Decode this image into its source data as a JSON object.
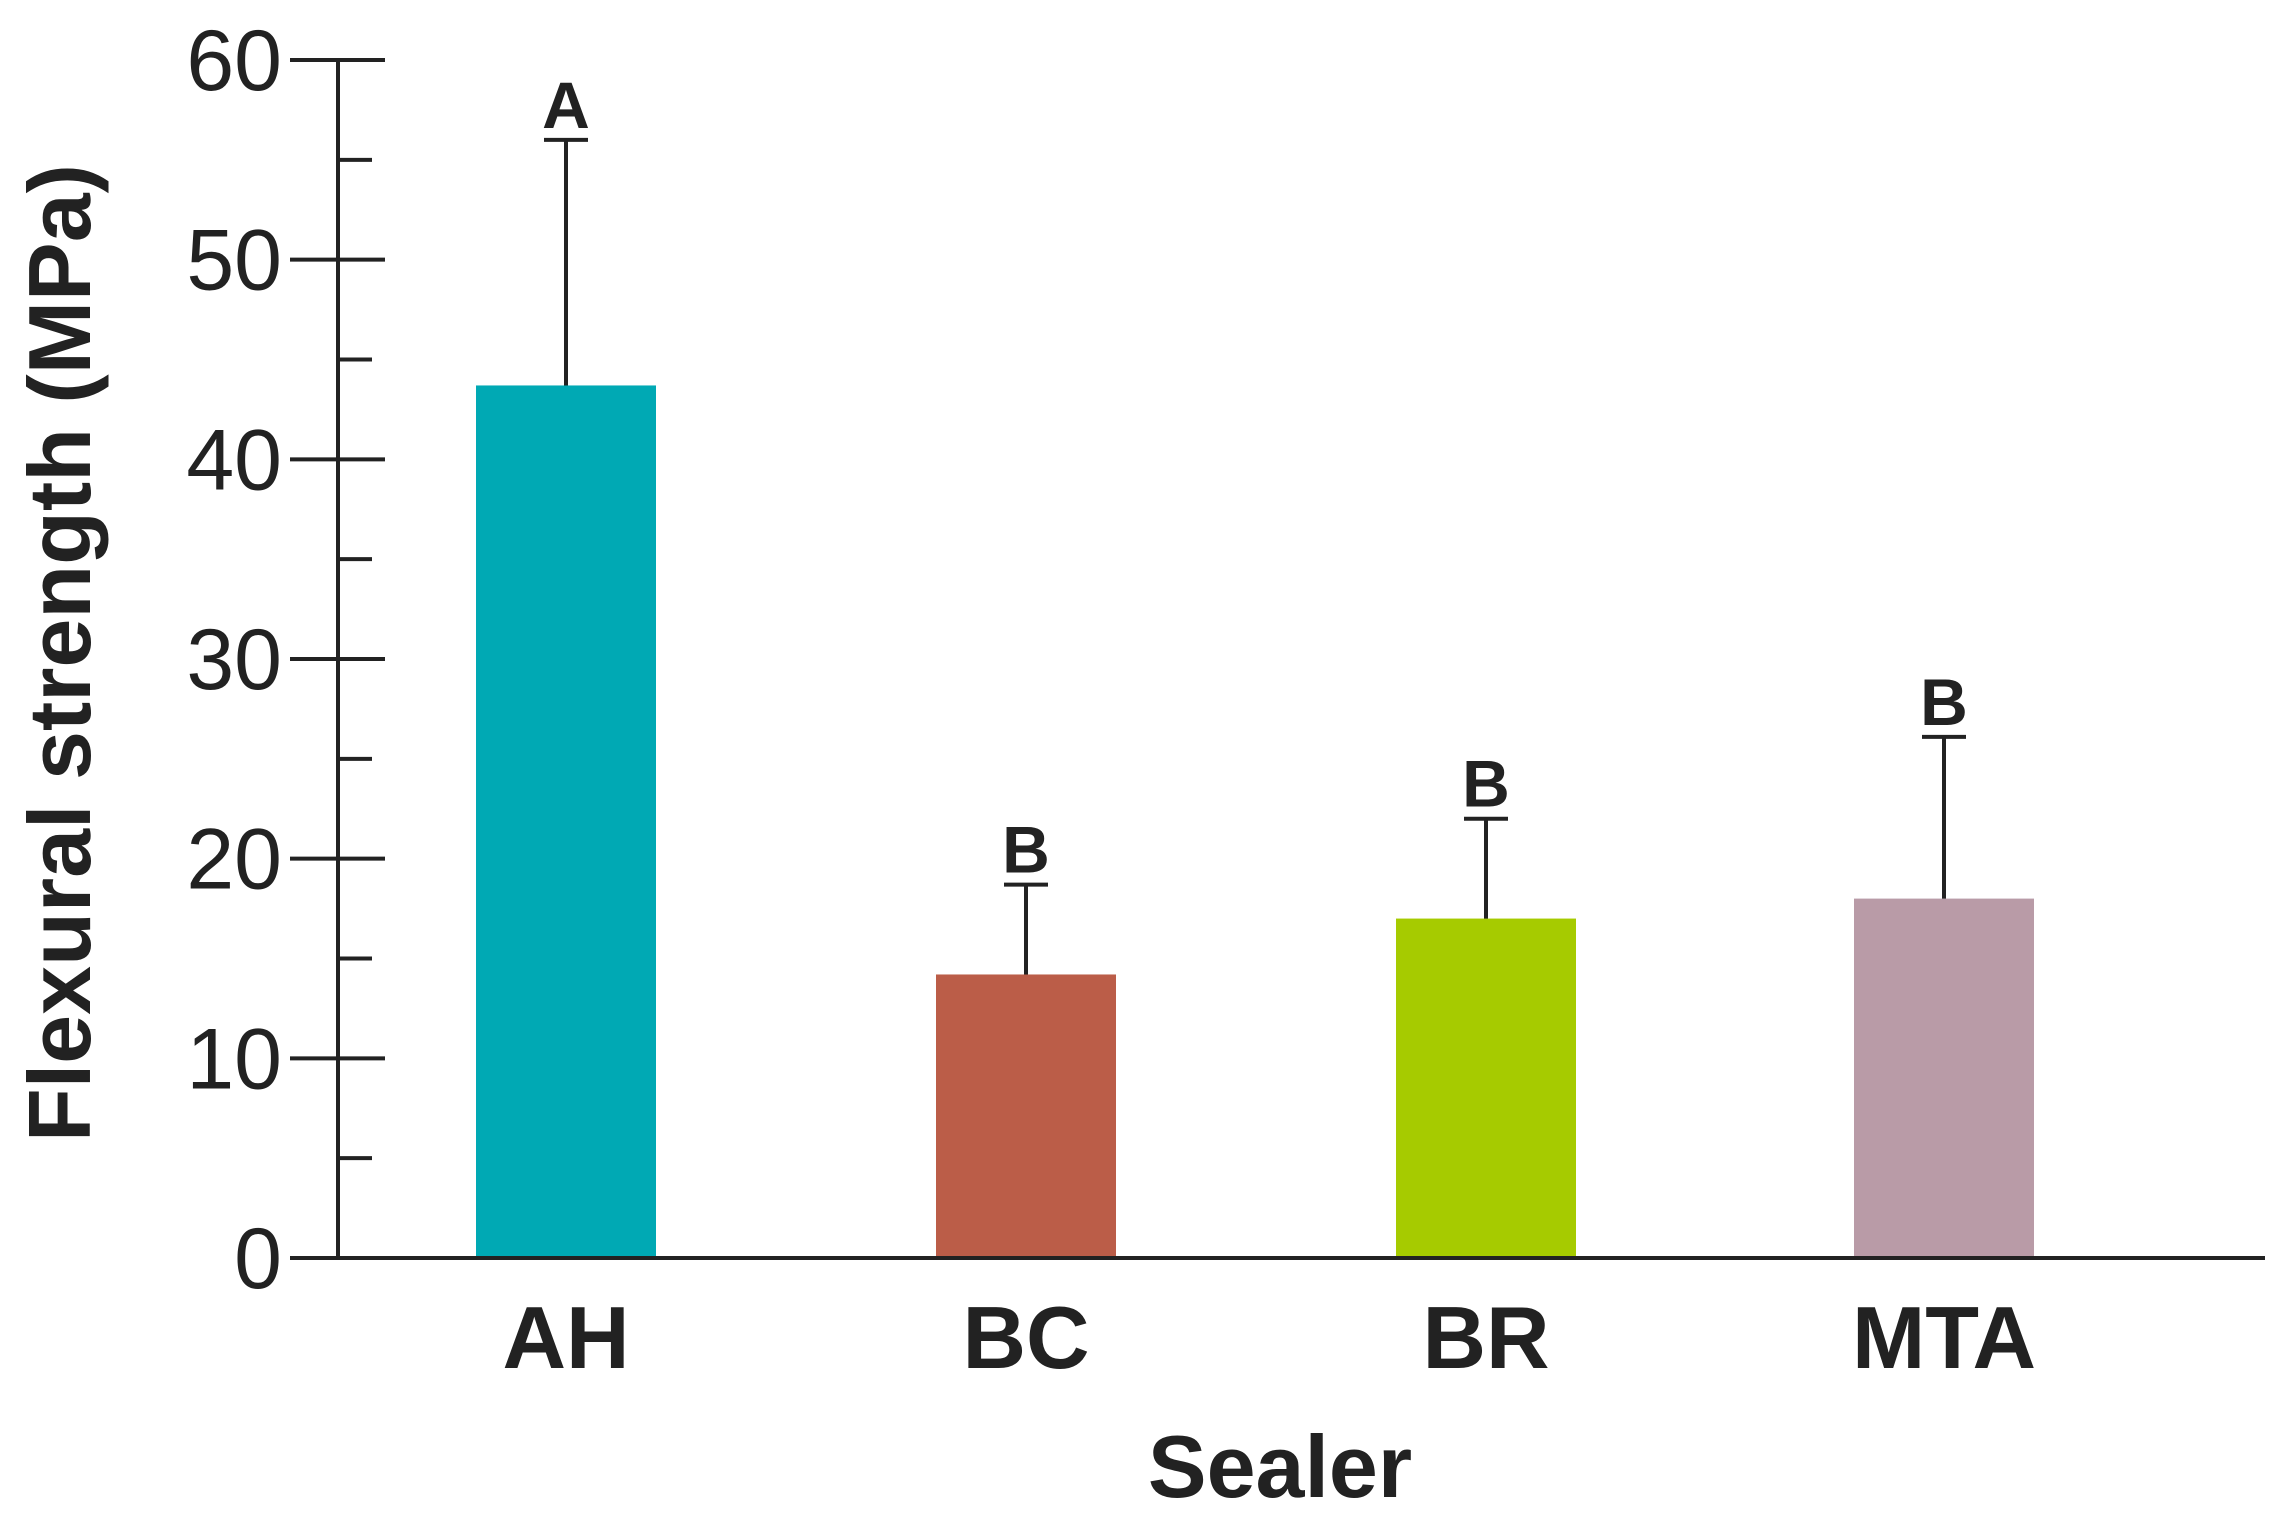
{
  "chart_data": {
    "type": "bar",
    "title": "",
    "xlabel": "Sealer",
    "ylabel": "Flexural strength (MPa)",
    "ylim": [
      0,
      60
    ],
    "yticks": [
      0,
      10,
      20,
      30,
      40,
      50,
      60
    ],
    "categories": [
      "AH",
      "BC",
      "BR",
      "MTA"
    ],
    "values": [
      43.7,
      14.2,
      17.0,
      18.0
    ],
    "error_upper": [
      56.0,
      18.7,
      22.0,
      26.1
    ],
    "significance_labels": [
      "A",
      "B",
      "B",
      "B"
    ],
    "colors": [
      "#00a9b4",
      "#bb5d48",
      "#a6cb00",
      "#b99ba7"
    ],
    "grid": false,
    "legend": "none"
  }
}
